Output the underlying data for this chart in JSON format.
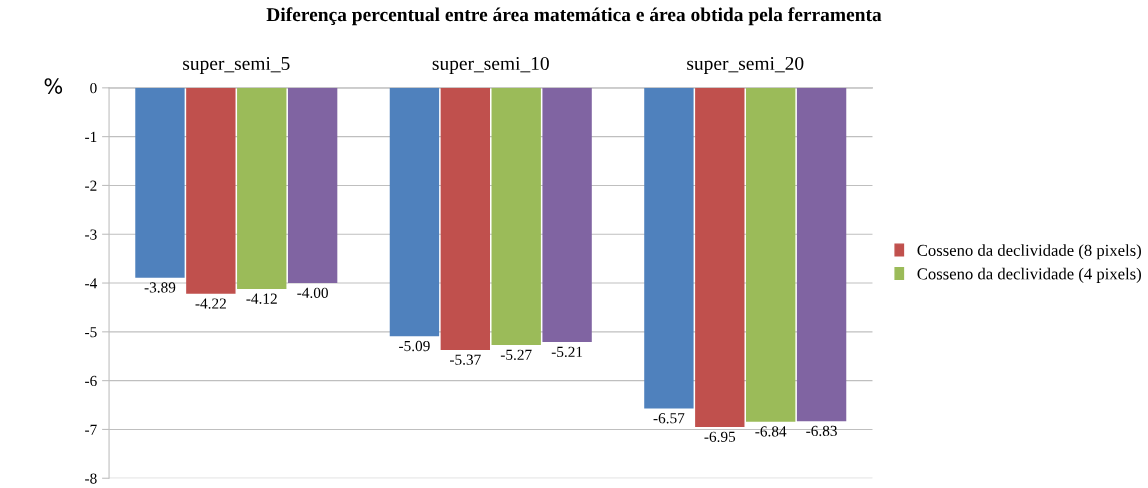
{
  "chart_data": {
    "type": "bar",
    "title": "Diferença percentual entre área matemática e área obtida pela ferramenta",
    "ylabel": "%",
    "categories": [
      "super_semi_5",
      "super_semi_10",
      "super_semi_20"
    ],
    "series": [
      {
        "color": "#4f81bd",
        "values": [
          -3.89,
          -5.09,
          -6.57
        ]
      },
      {
        "name": "Cosseno da declividade (8 pixels)",
        "color": "#c0504d",
        "values": [
          -4.22,
          -5.37,
          -6.95
        ]
      },
      {
        "name": "Cosseno da declividade (4 pixels)",
        "color": "#9bbb59",
        "values": [
          -4.12,
          -5.27,
          -6.84
        ]
      },
      {
        "color": "#8064a2",
        "values": [
          -4.0,
          -5.21,
          -6.83
        ]
      }
    ],
    "value_labels": [
      [
        "-3.89",
        "-5.09",
        "-6.57"
      ],
      [
        "-4.22",
        "-5.37",
        "-6.95"
      ],
      [
        "-4.12",
        "-5.27",
        "-6.84"
      ],
      [
        "-4.00",
        "-5.21",
        "-6.83"
      ]
    ],
    "ylim": [
      -8,
      0
    ],
    "yticks": [
      -8,
      -7,
      -6,
      -5,
      -4,
      -3,
      -2,
      -1,
      0
    ],
    "grid": "y",
    "legend": "right"
  }
}
